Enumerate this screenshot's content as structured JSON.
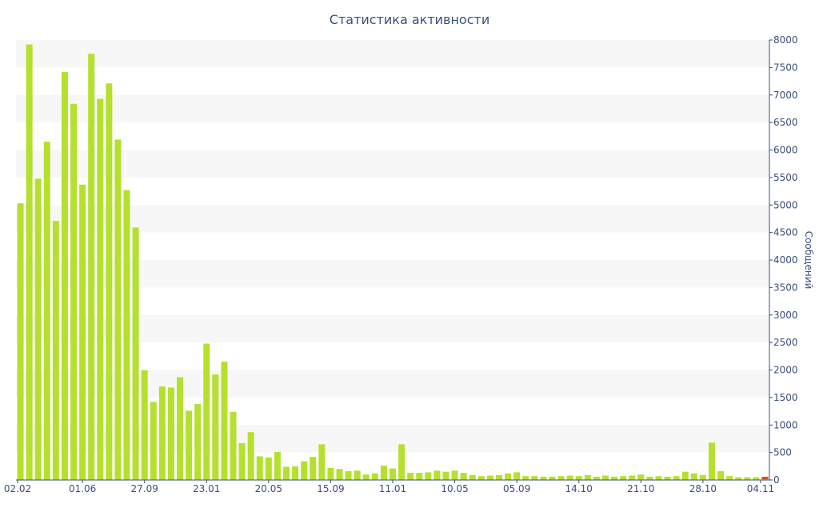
{
  "chart_data": {
    "type": "bar",
    "title": "Статистика активности",
    "ylabel": "Сообщений",
    "xlabel": "",
    "ylim": [
      0,
      8000
    ],
    "y_ticks": [
      0,
      500,
      1000,
      1500,
      2000,
      2500,
      3000,
      3500,
      4000,
      4500,
      5000,
      5500,
      6000,
      6500,
      7000,
      7500,
      8000
    ],
    "y_axis_side": "right",
    "grid": "alternating horizontal bands",
    "x_tick_labels": [
      {
        "label": "02.02",
        "index": 0
      },
      {
        "label": "01.06",
        "index": 7
      },
      {
        "label": "27.09",
        "index": 14
      },
      {
        "label": "23.01",
        "index": 21
      },
      {
        "label": "20.05",
        "index": 28
      },
      {
        "label": "15.09",
        "index": 35
      },
      {
        "label": "11.01",
        "index": 42
      },
      {
        "label": "10.05",
        "index": 49
      },
      {
        "label": "05.09",
        "index": 56
      },
      {
        "label": "14.10",
        "index": 63
      },
      {
        "label": "21.10",
        "index": 70
      },
      {
        "label": "28.10",
        "index": 77
      },
      {
        "label": "04.11",
        "index": 83.5
      }
    ],
    "series": [
      {
        "color": "#b5e02d",
        "values": [
          5030,
          7920,
          5480,
          6150,
          4710,
          7420,
          6840,
          5370,
          7750,
          6930,
          7210,
          6190,
          5270,
          4590,
          2000,
          1420,
          1700,
          1680,
          1870,
          1260,
          1380,
          2480,
          1920,
          2150,
          1240,
          670,
          870,
          430,
          410,
          510,
          240,
          250,
          340,
          420,
          650,
          220,
          200,
          160,
          170,
          100,
          120,
          260,
          210,
          650,
          130,
          130,
          140,
          170,
          150,
          170,
          130,
          90,
          70,
          80,
          90,
          120,
          140,
          70,
          70,
          60,
          60,
          70,
          80,
          70,
          90,
          60,
          80,
          60,
          70,
          80,
          100,
          60,
          70,
          60,
          70,
          150,
          120,
          90,
          680,
          160,
          70,
          50,
          50,
          50,
          60
        ]
      }
    ],
    "highlight_last_bar_color": "#d9502a"
  }
}
